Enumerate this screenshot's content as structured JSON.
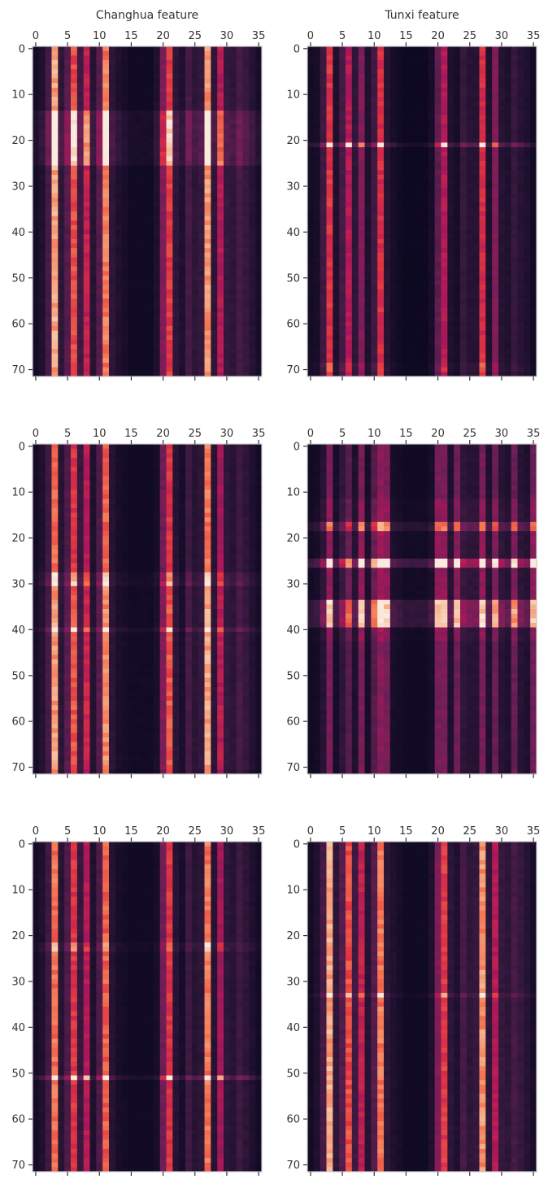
{
  "chart_data": [
    {
      "type": "heatmap",
      "title": "Changhua feature",
      "x_range": [
        0,
        35
      ],
      "y_range": [
        0,
        71
      ],
      "xticks": [
        0,
        5,
        10,
        15,
        20,
        25,
        30,
        35
      ],
      "yticks": [
        0,
        10,
        20,
        30,
        40,
        50,
        60,
        70
      ],
      "column_profile": "A",
      "row_profile": [
        {
          "rows": [
            14,
            25
          ],
          "gain": 1.6
        }
      ]
    },
    {
      "type": "heatmap",
      "title": "Tunxi feature",
      "x_range": [
        0,
        35
      ],
      "y_range": [
        0,
        71
      ],
      "xticks": [
        0,
        5,
        10,
        15,
        20,
        25,
        30,
        35
      ],
      "yticks": [
        0,
        10,
        20,
        30,
        40,
        50,
        60,
        70
      ],
      "column_profile": "B",
      "row_profile": [
        {
          "rows": [
            21,
            21
          ],
          "gain": 2.2
        },
        {
          "rows": [
            69,
            70
          ],
          "gain": 1.2
        }
      ]
    },
    {
      "type": "heatmap",
      "title": "",
      "x_range": [
        0,
        35
      ],
      "y_range": [
        0,
        71
      ],
      "xticks": [
        0,
        5,
        10,
        15,
        20,
        25,
        30,
        35
      ],
      "yticks": [
        0,
        10,
        20,
        30,
        40,
        50,
        60,
        70
      ],
      "column_profile": "C",
      "row_profile": [
        {
          "rows": [
            28,
            30
          ],
          "gain": 1.4
        },
        {
          "rows": [
            40,
            40
          ],
          "gain": 1.5
        },
        {
          "rows": [
            30,
            70
          ],
          "gain": 1.15
        }
      ]
    },
    {
      "type": "heatmap",
      "title": "",
      "x_range": [
        0,
        35
      ],
      "y_range": [
        0,
        71
      ],
      "xticks": [
        0,
        5,
        10,
        15,
        20,
        25,
        30,
        35
      ],
      "yticks": [
        0,
        10,
        20,
        30,
        40,
        50,
        60,
        70
      ],
      "column_profile": "D",
      "row_profile": [
        {
          "rows": [
            17,
            18
          ],
          "gain": 2.0
        },
        {
          "rows": [
            25,
            26
          ],
          "gain": 3.2
        },
        {
          "rows": [
            34,
            39
          ],
          "gain": 2.6
        },
        {
          "rows": [
            12,
            42
          ],
          "gain": 1.2
        }
      ]
    },
    {
      "type": "heatmap",
      "title": "",
      "x_range": [
        0,
        35
      ],
      "y_range": [
        0,
        71
      ],
      "xticks": [
        0,
        5,
        10,
        15,
        20,
        25,
        30,
        35
      ],
      "yticks": [
        0,
        10,
        20,
        30,
        40,
        50,
        60,
        70
      ],
      "column_profile": "C",
      "row_profile": [
        {
          "rows": [
            22,
            23
          ],
          "gain": 1.3
        },
        {
          "rows": [
            51,
            51
          ],
          "gain": 2.0
        }
      ]
    },
    {
      "type": "heatmap",
      "title": "",
      "x_range": [
        0,
        35
      ],
      "y_range": [
        0,
        71
      ],
      "xticks": [
        0,
        5,
        10,
        15,
        20,
        25,
        30,
        35
      ],
      "yticks": [
        0,
        10,
        20,
        30,
        40,
        50,
        60,
        70
      ],
      "column_profile": "A",
      "row_profile": [
        {
          "rows": [
            33,
            33
          ],
          "gain": 1.4
        }
      ]
    }
  ],
  "colormap": [
    "#03051a",
    "#36193e",
    "#701f57",
    "#ad1759",
    "#e13342",
    "#f37651",
    "#f6b48f",
    "#faebdd"
  ],
  "column_profiles": {
    "A": [
      0.05,
      0.08,
      0.18,
      0.82,
      0.12,
      0.22,
      0.62,
      0.16,
      0.48,
      0.1,
      0.22,
      0.72,
      0.12,
      0.08,
      0.06,
      0.04,
      0.04,
      0.04,
      0.04,
      0.08,
      0.32,
      0.58,
      0.12,
      0.08,
      0.18,
      0.12,
      0.14,
      0.78,
      0.12,
      0.44,
      0.14,
      0.12,
      0.18,
      0.14,
      0.1,
      0.06
    ],
    "B": [
      0.05,
      0.06,
      0.16,
      0.56,
      0.08,
      0.18,
      0.44,
      0.12,
      0.32,
      0.08,
      0.16,
      0.54,
      0.1,
      0.06,
      0.04,
      0.03,
      0.03,
      0.03,
      0.03,
      0.06,
      0.24,
      0.44,
      0.08,
      0.06,
      0.14,
      0.1,
      0.1,
      0.54,
      0.08,
      0.32,
      0.1,
      0.08,
      0.14,
      0.1,
      0.08,
      0.04
    ],
    "C": [
      0.05,
      0.08,
      0.16,
      0.7,
      0.1,
      0.2,
      0.56,
      0.14,
      0.44,
      0.08,
      0.2,
      0.66,
      0.1,
      0.06,
      0.05,
      0.04,
      0.04,
      0.04,
      0.04,
      0.06,
      0.28,
      0.56,
      0.1,
      0.06,
      0.16,
      0.1,
      0.12,
      0.72,
      0.1,
      0.4,
      0.12,
      0.1,
      0.16,
      0.12,
      0.08,
      0.05
    ],
    "D": [
      0.04,
      0.05,
      0.1,
      0.3,
      0.06,
      0.12,
      0.22,
      0.08,
      0.3,
      0.06,
      0.22,
      0.34,
      0.3,
      0.06,
      0.05,
      0.04,
      0.04,
      0.04,
      0.04,
      0.06,
      0.3,
      0.3,
      0.08,
      0.28,
      0.12,
      0.1,
      0.1,
      0.3,
      0.08,
      0.26,
      0.1,
      0.08,
      0.26,
      0.1,
      0.08,
      0.28
    ]
  }
}
